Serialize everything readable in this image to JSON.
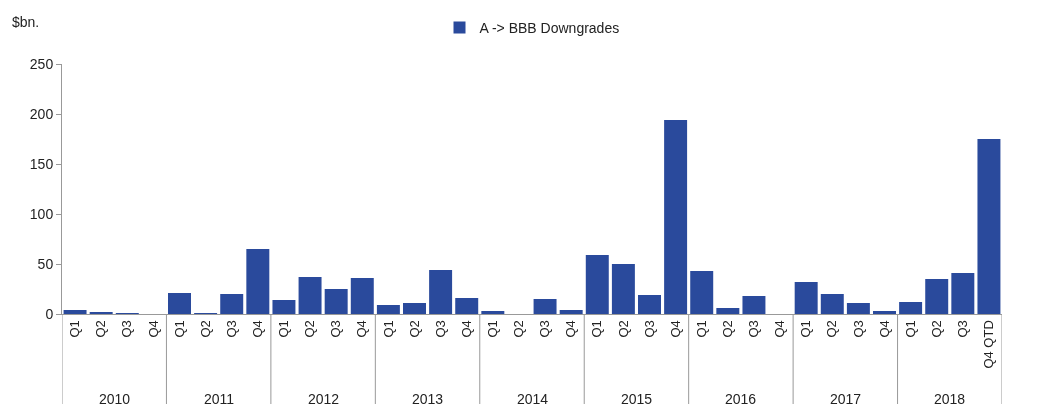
{
  "chart_data": {
    "type": "bar",
    "ylabel": "$bn.",
    "categories": [
      "Q1",
      "Q2",
      "Q3",
      "Q4",
      "Q1",
      "Q2",
      "Q3",
      "Q4",
      "Q1",
      "Q2",
      "Q3",
      "Q4",
      "Q1",
      "Q2",
      "Q3",
      "Q4",
      "Q1",
      "Q2",
      "Q3",
      "Q4",
      "Q1",
      "Q2",
      "Q3",
      "Q4",
      "Q1",
      "Q2",
      "Q3",
      "Q4",
      "Q1",
      "Q2",
      "Q3",
      "Q4",
      "Q1",
      "Q2",
      "Q3",
      "Q4 QTD"
    ],
    "series": [
      {
        "name": "A -> BBB Downgrades",
        "color": "#2a4a9c",
        "values": [
          4,
          2,
          1,
          0,
          21,
          1,
          20,
          65,
          14,
          37,
          25,
          36,
          9,
          11,
          44,
          16,
          3,
          0,
          15,
          4,
          59,
          50,
          19,
          194,
          43,
          6,
          18,
          0,
          32,
          20,
          11,
          3,
          12,
          35,
          41,
          175
        ]
      }
    ],
    "annotations": [
      "2010",
      "2011",
      "2012",
      "2013",
      "2014",
      "2015",
      "2016",
      "2017",
      "2018"
    ],
    "ylim": [
      0,
      250
    ],
    "yticks": [
      0,
      50,
      100,
      150,
      200,
      250
    ],
    "legend": "top"
  }
}
